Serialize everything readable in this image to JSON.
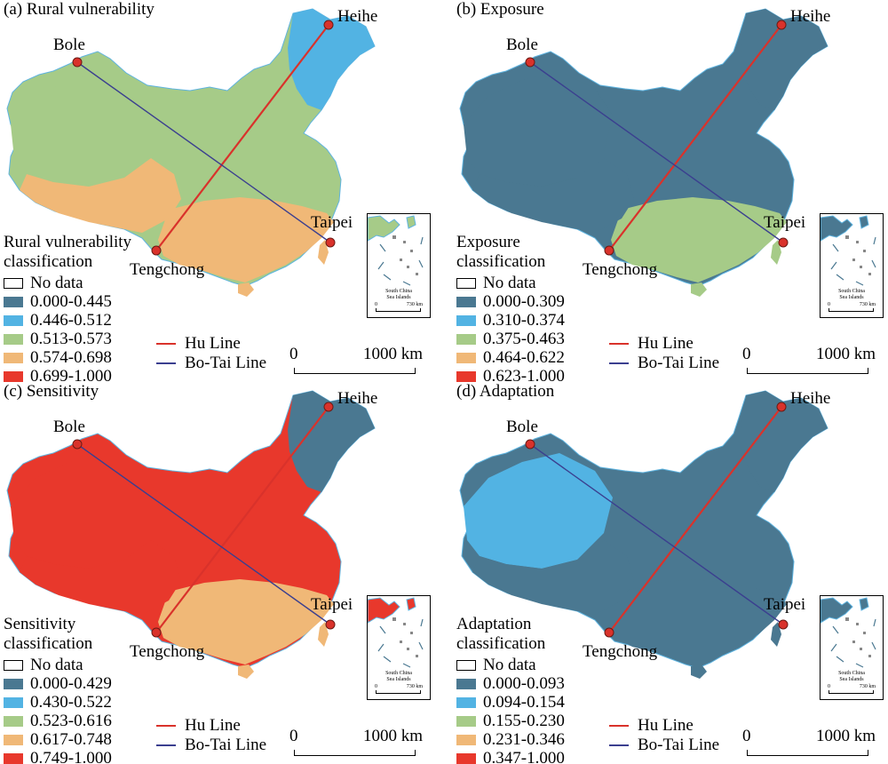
{
  "palette": {
    "class1": "#4a7891",
    "class2": "#52b3e3",
    "class3": "#a6cb88",
    "class4": "#f0b877",
    "class5": "#e8382c",
    "hu_line": "#d9322b",
    "bo_tai_line": "#3b3f8f"
  },
  "cities": {
    "heihe": "Heihe",
    "bole": "Bole",
    "taipei": "Taipei",
    "tengchong": "Tengchong"
  },
  "lines": {
    "hu": "Hu Line",
    "bo_tai": "Bo-Tai Line"
  },
  "scale": {
    "zero": "0",
    "end": "1000 km"
  },
  "inset": {
    "caption_line1": "South China",
    "caption_line2": "Sea Islands",
    "scale_zero": "0",
    "scale_end": "730 km"
  },
  "panels": [
    {
      "title": "(a) Rural vulnerability",
      "legend_title_line1": "Rural vulnerability",
      "legend_title_line2": "classification",
      "no_data": "No data",
      "classes": [
        "0.000-0.445",
        "0.446-0.512",
        "0.513-0.573",
        "0.574-0.698",
        "0.699-1.000"
      ],
      "dominant_class": 3
    },
    {
      "title": "(b) Exposure",
      "legend_title_line1": "Exposure",
      "legend_title_line2": "classification",
      "no_data": "No data",
      "classes": [
        "0.000-0.309",
        "0.310-0.374",
        "0.375-0.463",
        "0.464-0.622",
        "0.623-1.000"
      ],
      "dominant_class": 1
    },
    {
      "title": "(c) Sensitivity",
      "legend_title_line1": "Sensitivity",
      "legend_title_line2": "classification",
      "no_data": "No data",
      "classes": [
        "0.000-0.429",
        "0.430-0.522",
        "0.523-0.616",
        "0.617-0.748",
        "0.749-1.000"
      ],
      "dominant_class": 5
    },
    {
      "title": "(d) Adaptation",
      "legend_title_line1": "Adaptation",
      "legend_title_line2": "classification",
      "no_data": "No data",
      "classes": [
        "0.000-0.093",
        "0.094-0.154",
        "0.155-0.230",
        "0.231-0.346",
        "0.347-1.000"
      ],
      "dominant_class": 1
    }
  ]
}
